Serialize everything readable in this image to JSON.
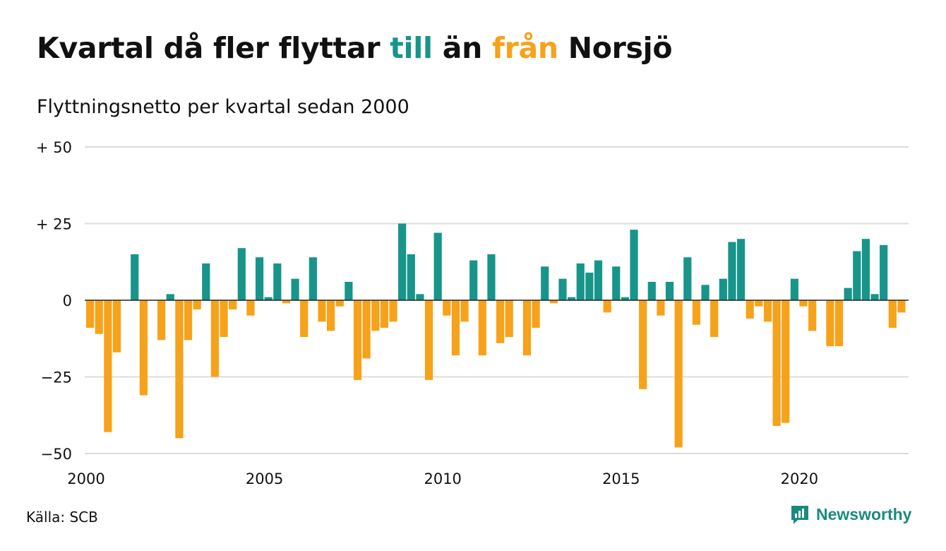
{
  "title": {
    "part1": "Kvartal då fler flyttar ",
    "till": "till",
    "part2": " än ",
    "fran": "från",
    "part3": " Norsjö"
  },
  "subtitle": "Flyttningsnetto per kvartal sedan 2000",
  "source": "Källa: SCB",
  "brand": {
    "name": "Newsworthy",
    "icon": "newsworthy-logo-icon"
  },
  "colors": {
    "positive": "#17958a",
    "negative": "#f7a21b",
    "grid": "#dcdcdc",
    "zero_line": "#222222"
  },
  "chart_data": {
    "type": "bar",
    "title": "Kvartal då fler flyttar till än från Norsjö",
    "subtitle": "Flyttningsnetto per kvartal sedan 2000",
    "xlabel": "",
    "ylabel": "",
    "ylim": [
      -50,
      50
    ],
    "y_ticks": [
      50,
      25,
      0,
      -25,
      -50
    ],
    "y_tick_labels": [
      "+ 50",
      "+ 25",
      "0",
      "−25",
      "−50"
    ],
    "x_ticks": [
      2000,
      2005,
      2010,
      2015,
      2020
    ],
    "x_tick_labels": [
      "2000",
      "2005",
      "2010",
      "2015",
      "2020"
    ],
    "grid": true,
    "legend": "none",
    "start": "2000 Q1",
    "frequency": "quarterly",
    "values": [
      -9,
      -11,
      -43,
      -17,
      0,
      15,
      -31,
      0,
      -13,
      2,
      -45,
      -13,
      -3,
      12,
      -25,
      -12,
      -3,
      17,
      -5,
      14,
      1,
      12,
      -1,
      7,
      -12,
      14,
      -7,
      -10,
      -2,
      6,
      -26,
      -19,
      -10,
      -9,
      -7,
      25,
      15,
      2,
      -26,
      22,
      -5,
      -18,
      -7,
      13,
      -18,
      15,
      -14,
      -12,
      0,
      -18,
      -9,
      11,
      -1,
      7,
      1,
      12,
      9,
      13,
      -4,
      11,
      1,
      23,
      -29,
      6,
      -5,
      6,
      -48,
      14,
      -8,
      5,
      -12,
      7,
      19,
      20,
      -6,
      -2,
      -7,
      -41,
      -40,
      7,
      -2,
      -10,
      0,
      -15,
      -15,
      4,
      16,
      20,
      2,
      18,
      -9,
      -4
    ]
  }
}
